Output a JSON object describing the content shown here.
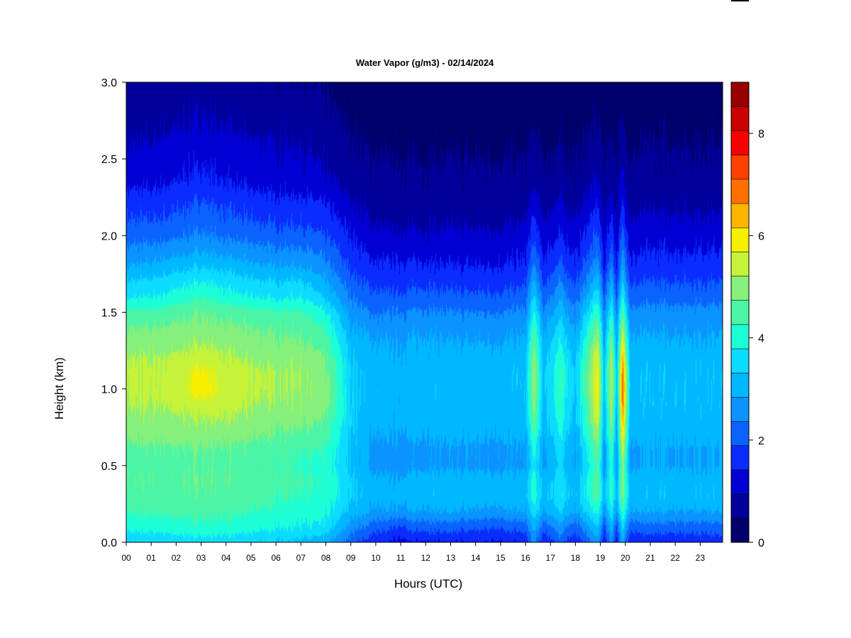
{
  "chart_data": {
    "type": "heatmap",
    "title": "Water Vapor (g/m3) - 02/14/2024",
    "xlabel": "Hours (UTC)",
    "ylabel": "Height (km)",
    "x_ticks": [
      "00",
      "01",
      "02",
      "03",
      "04",
      "05",
      "06",
      "07",
      "08",
      "09",
      "10",
      "11",
      "12",
      "13",
      "14",
      "15",
      "16",
      "17",
      "18",
      "19",
      "20",
      "21",
      "22",
      "23"
    ],
    "xlim": [
      0,
      23.9
    ],
    "y_ticks": [
      "0.0",
      "0.5",
      "1.0",
      "1.5",
      "2.0",
      "2.5",
      "3.0"
    ],
    "ylim": [
      0,
      3
    ],
    "colorbar": {
      "ticks": [
        "0",
        "2",
        "4",
        "6",
        "8"
      ],
      "range": [
        0,
        9
      ],
      "step": 0.5,
      "colors": [
        "#00006b",
        "#00009a",
        "#0000d4",
        "#0a2cff",
        "#0b63ff",
        "#0b93ff",
        "#00b8ff",
        "#0cdcff",
        "#1cffd7",
        "#4cf5a6",
        "#85f07b",
        "#c6f338",
        "#f7ee00",
        "#ffb400",
        "#ff7000",
        "#ff4000",
        "#f70000",
        "#c90000",
        "#960000"
      ]
    },
    "profile_heights_km": [
      0.0,
      0.1,
      0.2,
      0.3,
      0.4,
      0.5,
      0.6,
      0.7,
      0.8,
      0.9,
      1.0,
      1.1,
      1.2,
      1.3,
      1.4,
      1.5,
      1.6,
      1.7,
      1.8,
      1.9,
      2.0,
      2.1,
      2.2,
      2.3,
      2.4,
      2.5,
      2.6,
      2.7,
      2.8,
      2.9,
      3.0
    ],
    "profiles": [
      {
        "hour": 0.0,
        "values": [
          3.5,
          4.2,
          4.5,
          4.7,
          4.9,
          4.8,
          4.8,
          5.1,
          5.3,
          5.5,
          5.6,
          5.6,
          5.5,
          5.2,
          5.0,
          4.6,
          3.9,
          3.5,
          3.0,
          2.6,
          2.3,
          2.0,
          1.8,
          1.5,
          1.2,
          1.1,
          1.0,
          0.9,
          0.8,
          0.7,
          0.6
        ]
      },
      {
        "hour": 1.0,
        "values": [
          3.6,
          4.2,
          4.6,
          4.8,
          4.9,
          4.8,
          4.9,
          5.2,
          5.4,
          5.5,
          5.6,
          5.6,
          5.5,
          5.3,
          5.0,
          4.6,
          4.0,
          3.6,
          3.1,
          2.7,
          2.3,
          2.0,
          1.8,
          1.5,
          1.3,
          1.2,
          1.0,
          0.9,
          0.8,
          0.7,
          0.6
        ]
      },
      {
        "hour": 2.0,
        "values": [
          3.7,
          4.3,
          4.6,
          4.8,
          4.9,
          4.8,
          4.9,
          5.2,
          5.4,
          5.6,
          5.7,
          5.7,
          5.6,
          5.3,
          5.1,
          4.8,
          4.2,
          3.8,
          3.3,
          2.8,
          2.4,
          2.1,
          1.9,
          1.6,
          1.4,
          1.3,
          1.2,
          1.0,
          0.9,
          0.8,
          0.7
        ]
      },
      {
        "hour": 3.0,
        "values": [
          3.8,
          4.4,
          4.7,
          4.9,
          5.0,
          4.9,
          5.0,
          5.3,
          5.5,
          5.8,
          6.4,
          6.2,
          5.8,
          5.5,
          5.2,
          5.0,
          4.5,
          4.0,
          3.5,
          3.0,
          2.6,
          2.3,
          2.1,
          1.8,
          1.6,
          1.4,
          1.3,
          1.1,
          1.0,
          0.9,
          0.8
        ]
      },
      {
        "hour": 4.0,
        "values": [
          3.7,
          4.3,
          4.6,
          4.8,
          4.9,
          4.8,
          4.9,
          5.2,
          5.5,
          5.7,
          5.8,
          5.8,
          5.6,
          5.3,
          5.1,
          4.8,
          4.2,
          3.8,
          3.3,
          2.8,
          2.4,
          2.1,
          1.9,
          1.6,
          1.4,
          1.3,
          1.2,
          1.0,
          0.9,
          0.8,
          0.7
        ]
      },
      {
        "hour": 5.0,
        "values": [
          3.6,
          4.2,
          4.5,
          4.7,
          4.8,
          4.7,
          4.8,
          5.1,
          5.3,
          5.5,
          5.6,
          5.6,
          5.4,
          5.2,
          5.0,
          4.7,
          4.0,
          3.6,
          3.1,
          2.7,
          2.3,
          2.0,
          1.8,
          1.5,
          1.3,
          1.2,
          1.1,
          0.9,
          0.8,
          0.7,
          0.6
        ]
      },
      {
        "hour": 6.0,
        "values": [
          3.5,
          4.1,
          4.4,
          4.6,
          4.7,
          4.6,
          4.7,
          5.0,
          5.2,
          5.4,
          5.5,
          5.5,
          5.3,
          5.1,
          4.9,
          4.6,
          3.9,
          3.5,
          3.0,
          2.6,
          2.2,
          1.9,
          1.7,
          1.4,
          1.2,
          1.1,
          1.0,
          0.9,
          0.8,
          0.7,
          0.6
        ]
      },
      {
        "hour": 7.0,
        "values": [
          3.4,
          4.0,
          4.3,
          4.5,
          4.6,
          4.5,
          4.6,
          4.9,
          5.2,
          5.4,
          5.5,
          5.5,
          5.4,
          5.1,
          4.9,
          4.6,
          4.0,
          3.6,
          3.0,
          2.6,
          2.2,
          1.9,
          1.7,
          1.4,
          1.2,
          1.1,
          1.0,
          0.9,
          0.8,
          0.7,
          0.6
        ]
      },
      {
        "hour": 8.0,
        "values": [
          3.1,
          3.8,
          4.1,
          4.3,
          4.4,
          4.3,
          4.4,
          4.7,
          4.9,
          5.1,
          5.2,
          5.1,
          5.0,
          4.7,
          4.4,
          4.0,
          3.4,
          3.0,
          2.6,
          2.3,
          2.0,
          1.7,
          1.5,
          1.2,
          1.0,
          0.9,
          0.8,
          0.7,
          0.6,
          0.5,
          0.4
        ]
      },
      {
        "hour": 9.0,
        "values": [
          2.2,
          2.8,
          3.3,
          3.6,
          3.6,
          3.4,
          3.4,
          3.5,
          3.6,
          3.6,
          3.6,
          3.6,
          3.5,
          3.3,
          3.1,
          2.8,
          2.5,
          2.2,
          1.9,
          1.7,
          1.5,
          1.3,
          1.1,
          0.9,
          0.8,
          0.7,
          0.6,
          0.5,
          0.4,
          0.3,
          0.3
        ]
      },
      {
        "hour": 10.0,
        "values": [
          1.6,
          2.2,
          2.9,
          3.2,
          3.1,
          2.8,
          2.8,
          3.0,
          3.1,
          3.2,
          3.2,
          3.2,
          3.1,
          3.0,
          2.8,
          2.4,
          2.1,
          1.8,
          1.6,
          1.3,
          1.1,
          0.9,
          0.8,
          0.7,
          0.6,
          0.5,
          0.4,
          0.3,
          0.2,
          0.2,
          0.2
        ]
      },
      {
        "hour": 11.0,
        "values": [
          1.4,
          2.0,
          2.9,
          3.2,
          3.1,
          2.8,
          2.8,
          3.0,
          3.2,
          3.2,
          3.2,
          3.2,
          3.1,
          3.0,
          2.8,
          2.5,
          2.1,
          1.8,
          1.6,
          1.3,
          1.1,
          0.9,
          0.8,
          0.7,
          0.6,
          0.5,
          0.4,
          0.3,
          0.2,
          0.2,
          0.2
        ]
      },
      {
        "hour": 12.0,
        "values": [
          1.5,
          2.3,
          3.0,
          3.4,
          3.3,
          2.9,
          2.9,
          3.1,
          3.3,
          3.3,
          3.3,
          3.3,
          3.2,
          3.1,
          2.9,
          2.6,
          2.2,
          1.9,
          1.6,
          1.3,
          1.1,
          0.9,
          0.8,
          0.7,
          0.6,
          0.5,
          0.4,
          0.3,
          0.2,
          0.2,
          0.2
        ]
      },
      {
        "hour": 13.0,
        "values": [
          1.5,
          2.2,
          3.0,
          3.3,
          3.2,
          2.9,
          2.9,
          3.1,
          3.2,
          3.3,
          3.3,
          3.3,
          3.2,
          3.0,
          2.8,
          2.5,
          2.1,
          1.8,
          1.5,
          1.3,
          1.1,
          0.9,
          0.8,
          0.7,
          0.6,
          0.5,
          0.4,
          0.3,
          0.2,
          0.2,
          0.2
        ]
      },
      {
        "hour": 14.0,
        "values": [
          1.5,
          2.1,
          2.9,
          3.3,
          3.2,
          2.9,
          2.9,
          3.1,
          3.2,
          3.3,
          3.3,
          3.3,
          3.2,
          3.0,
          2.8,
          2.5,
          2.1,
          1.8,
          1.5,
          1.3,
          1.1,
          0.9,
          0.8,
          0.7,
          0.6,
          0.5,
          0.4,
          0.3,
          0.2,
          0.2,
          0.2
        ]
      },
      {
        "hour": 15.0,
        "values": [
          1.5,
          2.1,
          2.9,
          3.3,
          3.2,
          2.9,
          2.9,
          3.1,
          3.2,
          3.3,
          3.3,
          3.3,
          3.2,
          3.0,
          2.8,
          2.5,
          2.1,
          1.8,
          1.5,
          1.3,
          1.1,
          0.9,
          0.8,
          0.7,
          0.6,
          0.5,
          0.4,
          0.3,
          0.2,
          0.2,
          0.2
        ]
      },
      {
        "hour": 16.0,
        "values": [
          1.6,
          2.2,
          3.0,
          3.3,
          3.2,
          2.9,
          2.9,
          3.1,
          3.3,
          3.3,
          3.4,
          3.4,
          3.3,
          3.1,
          2.9,
          2.6,
          2.2,
          1.9,
          1.6,
          1.4,
          1.2,
          1.0,
          0.8,
          0.7,
          0.6,
          0.5,
          0.4,
          0.3,
          0.2,
          0.2,
          0.2
        ]
      },
      {
        "hour": 16.35,
        "values": [
          2.6,
          3.2,
          3.8,
          4.3,
          4.2,
          4.0,
          4.2,
          4.6,
          5.0,
          5.3,
          5.5,
          5.5,
          5.3,
          5.0,
          4.6,
          4.1,
          3.6,
          3.1,
          2.6,
          2.2,
          1.9,
          1.6,
          1.3,
          1.0,
          0.8,
          0.7,
          0.6,
          0.5,
          0.4,
          0.3,
          0.3
        ]
      },
      {
        "hour": 16.7,
        "values": [
          1.6,
          2.2,
          3.0,
          3.3,
          3.2,
          2.9,
          2.9,
          3.1,
          3.3,
          3.3,
          3.4,
          3.4,
          3.3,
          3.1,
          2.9,
          2.6,
          2.2,
          1.9,
          1.6,
          1.4,
          1.2,
          1.0,
          0.8,
          0.7,
          0.6,
          0.5,
          0.4,
          0.3,
          0.2,
          0.2,
          0.2
        ]
      },
      {
        "hour": 17.4,
        "values": [
          2.2,
          2.8,
          3.5,
          3.9,
          3.8,
          3.6,
          3.7,
          4.0,
          4.2,
          4.4,
          4.5,
          4.5,
          4.3,
          4.0,
          3.7,
          3.3,
          2.9,
          2.5,
          2.1,
          1.8,
          1.5,
          1.3,
          1.1,
          0.9,
          0.7,
          0.6,
          0.5,
          0.4,
          0.3,
          0.3,
          0.2
        ]
      },
      {
        "hour": 18.0,
        "values": [
          1.6,
          2.2,
          3.0,
          3.3,
          3.2,
          2.9,
          2.9,
          3.1,
          3.3,
          3.3,
          3.4,
          3.4,
          3.3,
          3.1,
          2.9,
          2.6,
          2.2,
          1.9,
          1.6,
          1.4,
          1.2,
          1.0,
          0.8,
          0.7,
          0.6,
          0.5,
          0.4,
          0.3,
          0.2,
          0.2,
          0.2
        ]
      },
      {
        "hour": 18.9,
        "values": [
          2.8,
          3.5,
          4.2,
          4.8,
          4.8,
          4.7,
          5.0,
          5.4,
          5.8,
          6.1,
          6.3,
          6.3,
          6.0,
          5.6,
          5.1,
          4.5,
          3.9,
          3.3,
          2.8,
          2.4,
          2.1,
          1.8,
          1.5,
          1.2,
          1.0,
          0.8,
          0.7,
          0.6,
          0.5,
          0.4,
          0.3
        ]
      },
      {
        "hour": 19.15,
        "values": [
          1.5,
          2.0,
          2.8,
          3.2,
          3.1,
          2.8,
          2.8,
          3.0,
          3.1,
          3.2,
          3.3,
          3.3,
          3.2,
          3.0,
          2.8,
          2.5,
          2.1,
          1.8,
          1.5,
          1.3,
          1.1,
          0.9,
          0.8,
          0.7,
          0.6,
          0.5,
          0.4,
          0.3,
          0.2,
          0.2,
          0.2
        ]
      },
      {
        "hour": 19.45,
        "values": [
          2.7,
          3.3,
          4.0,
          4.5,
          4.5,
          4.4,
          4.6,
          5.0,
          5.4,
          5.7,
          5.8,
          5.8,
          5.6,
          5.2,
          4.8,
          4.2,
          3.6,
          3.1,
          2.6,
          2.2,
          1.9,
          1.6,
          1.3,
          1.0,
          0.8,
          0.7,
          0.6,
          0.5,
          0.4,
          0.3,
          0.3
        ]
      },
      {
        "hour": 19.65,
        "values": [
          1.5,
          2.0,
          2.8,
          3.2,
          3.1,
          2.8,
          2.8,
          3.0,
          3.1,
          3.2,
          3.3,
          3.3,
          3.2,
          3.0,
          2.8,
          2.5,
          2.1,
          1.8,
          1.5,
          1.3,
          1.1,
          0.9,
          0.8,
          0.7,
          0.6,
          0.5,
          0.4,
          0.3,
          0.2,
          0.2,
          0.2
        ]
      },
      {
        "hour": 19.9,
        "values": [
          3.0,
          3.7,
          4.5,
          5.2,
          5.3,
          5.3,
          5.8,
          6.3,
          6.8,
          7.2,
          7.4,
          7.3,
          6.8,
          6.2,
          5.5,
          4.8,
          4.1,
          3.5,
          3.0,
          2.6,
          2.2,
          1.9,
          1.6,
          1.3,
          1.1,
          0.9,
          0.8,
          0.6,
          0.5,
          0.4,
          0.3
        ]
      },
      {
        "hour": 20.2,
        "values": [
          1.6,
          2.2,
          3.0,
          3.3,
          3.2,
          2.9,
          2.9,
          3.1,
          3.3,
          3.3,
          3.4,
          3.4,
          3.3,
          3.1,
          2.9,
          2.6,
          2.2,
          1.9,
          1.6,
          1.4,
          1.2,
          1.0,
          0.8,
          0.7,
          0.6,
          0.5,
          0.4,
          0.3,
          0.2,
          0.2,
          0.2
        ]
      },
      {
        "hour": 21.0,
        "values": [
          1.6,
          2.3,
          3.0,
          3.4,
          3.3,
          3.0,
          3.0,
          3.2,
          3.3,
          3.4,
          3.4,
          3.4,
          3.3,
          3.1,
          2.9,
          2.7,
          2.3,
          2.0,
          1.7,
          1.5,
          1.3,
          1.1,
          0.9,
          0.8,
          0.7,
          0.6,
          0.5,
          0.4,
          0.3,
          0.3,
          0.2
        ]
      },
      {
        "hour": 22.0,
        "values": [
          1.6,
          2.3,
          3.0,
          3.4,
          3.3,
          3.0,
          3.0,
          3.2,
          3.3,
          3.4,
          3.4,
          3.4,
          3.3,
          3.1,
          2.9,
          2.7,
          2.3,
          2.0,
          1.7,
          1.5,
          1.3,
          1.1,
          0.9,
          0.8,
          0.7,
          0.6,
          0.5,
          0.4,
          0.3,
          0.3,
          0.2
        ]
      },
      {
        "hour": 23.0,
        "values": [
          1.7,
          2.3,
          3.0,
          3.4,
          3.3,
          3.0,
          3.0,
          3.2,
          3.3,
          3.4,
          3.4,
          3.4,
          3.3,
          3.1,
          2.9,
          2.7,
          2.3,
          2.0,
          1.7,
          1.5,
          1.3,
          1.1,
          0.9,
          0.8,
          0.7,
          0.6,
          0.5,
          0.4,
          0.3,
          0.3,
          0.2
        ]
      },
      {
        "hour": 23.9,
        "values": [
          1.7,
          2.3,
          3.0,
          3.4,
          3.3,
          3.0,
          3.0,
          3.2,
          3.3,
          3.4,
          3.4,
          3.4,
          3.3,
          3.1,
          2.9,
          2.7,
          2.3,
          2.0,
          1.7,
          1.5,
          1.3,
          1.1,
          0.9,
          0.8,
          0.7,
          0.6,
          0.5,
          0.4,
          0.3,
          0.3,
          0.2
        ]
      }
    ]
  }
}
